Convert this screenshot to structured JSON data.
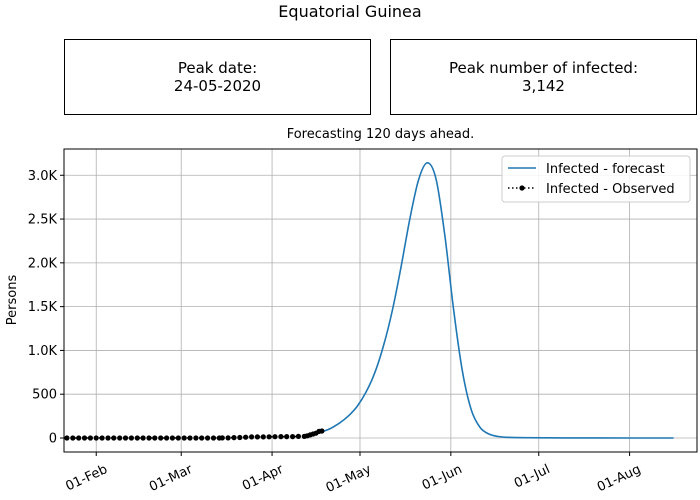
{
  "page": {
    "title": "Equatorial Guinea",
    "peak_date_label": "Peak date:",
    "peak_date_value": "24-05-2020",
    "peak_number_label": "Peak number of infected:",
    "peak_number_value": "3,142",
    "subtitle": "Forecasting 120 days ahead."
  },
  "chart_data": {
    "type": "line",
    "title": "Forecasting 120 days ahead.",
    "xlabel": "",
    "ylabel": "Persons",
    "x_range": [
      "2020-01-21",
      "2020-08-24"
    ],
    "ylim": [
      -160,
      3300
    ],
    "grid": true,
    "legend_position": "top-right",
    "x_ticks": [
      {
        "date": "2020-02-01",
        "label": "01-Feb"
      },
      {
        "date": "2020-03-01",
        "label": "01-Mar"
      },
      {
        "date": "2020-04-01",
        "label": "01-Apr"
      },
      {
        "date": "2020-05-01",
        "label": "01-May"
      },
      {
        "date": "2020-06-01",
        "label": "01-Jun"
      },
      {
        "date": "2020-07-01",
        "label": "01-Jul"
      },
      {
        "date": "2020-08-01",
        "label": "01-Aug"
      }
    ],
    "y_ticks": [
      {
        "value": 0,
        "label": "0"
      },
      {
        "value": 500,
        "label": "500"
      },
      {
        "value": 1000,
        "label": "1.0K"
      },
      {
        "value": 1500,
        "label": "1.5K"
      },
      {
        "value": 2000,
        "label": "2.0K"
      },
      {
        "value": 2500,
        "label": "2.5K"
      },
      {
        "value": 3000,
        "label": "3.0K"
      }
    ],
    "series": [
      {
        "name": "Infected - forecast",
        "color": "#1f77b4",
        "style": "solid",
        "points": [
          [
            "2020-04-18",
            70
          ],
          [
            "2020-04-21",
            110
          ],
          [
            "2020-04-24",
            170
          ],
          [
            "2020-04-27",
            250
          ],
          [
            "2020-04-30",
            360
          ],
          [
            "2020-05-03",
            520
          ],
          [
            "2020-05-06",
            740
          ],
          [
            "2020-05-09",
            1050
          ],
          [
            "2020-05-12",
            1450
          ],
          [
            "2020-05-15",
            1950
          ],
          [
            "2020-05-18",
            2500
          ],
          [
            "2020-05-21",
            2950
          ],
          [
            "2020-05-24",
            3142
          ],
          [
            "2020-05-27",
            2950
          ],
          [
            "2020-05-30",
            2300
          ],
          [
            "2020-06-02",
            1450
          ],
          [
            "2020-06-05",
            750
          ],
          [
            "2020-06-08",
            320
          ],
          [
            "2020-06-11",
            120
          ],
          [
            "2020-06-14",
            45
          ],
          [
            "2020-06-17",
            18
          ],
          [
            "2020-06-20",
            8
          ],
          [
            "2020-06-26",
            3
          ],
          [
            "2020-07-10",
            1
          ],
          [
            "2020-08-01",
            0
          ],
          [
            "2020-08-16",
            0
          ]
        ]
      },
      {
        "name": "Infected - Observed",
        "color": "#000000",
        "style": "dotted-markers",
        "points": [
          [
            "2020-01-22",
            0
          ],
          [
            "2020-01-24",
            0
          ],
          [
            "2020-01-26",
            0
          ],
          [
            "2020-01-28",
            0
          ],
          [
            "2020-01-30",
            0
          ],
          [
            "2020-02-01",
            0
          ],
          [
            "2020-02-03",
            0
          ],
          [
            "2020-02-05",
            0
          ],
          [
            "2020-02-07",
            0
          ],
          [
            "2020-02-09",
            0
          ],
          [
            "2020-02-11",
            0
          ],
          [
            "2020-02-13",
            0
          ],
          [
            "2020-02-15",
            0
          ],
          [
            "2020-02-17",
            0
          ],
          [
            "2020-02-19",
            0
          ],
          [
            "2020-02-21",
            0
          ],
          [
            "2020-02-23",
            0
          ],
          [
            "2020-02-25",
            0
          ],
          [
            "2020-02-27",
            0
          ],
          [
            "2020-02-29",
            0
          ],
          [
            "2020-03-02",
            0
          ],
          [
            "2020-03-04",
            0
          ],
          [
            "2020-03-06",
            0
          ],
          [
            "2020-03-08",
            0
          ],
          [
            "2020-03-10",
            0
          ],
          [
            "2020-03-12",
            0
          ],
          [
            "2020-03-14",
            0
          ],
          [
            "2020-03-15",
            1
          ],
          [
            "2020-03-17",
            1
          ],
          [
            "2020-03-19",
            4
          ],
          [
            "2020-03-21",
            6
          ],
          [
            "2020-03-23",
            9
          ],
          [
            "2020-03-25",
            12
          ],
          [
            "2020-03-27",
            12
          ],
          [
            "2020-03-29",
            12
          ],
          [
            "2020-03-31",
            14
          ],
          [
            "2020-04-02",
            15
          ],
          [
            "2020-04-04",
            16
          ],
          [
            "2020-04-06",
            16
          ],
          [
            "2020-04-08",
            16
          ],
          [
            "2020-04-10",
            18
          ],
          [
            "2020-04-12",
            18
          ],
          [
            "2020-04-13",
            25
          ],
          [
            "2020-04-14",
            35
          ],
          [
            "2020-04-15",
            45
          ],
          [
            "2020-04-16",
            55
          ],
          [
            "2020-04-17",
            75
          ],
          [
            "2020-04-18",
            80
          ]
        ]
      }
    ]
  }
}
